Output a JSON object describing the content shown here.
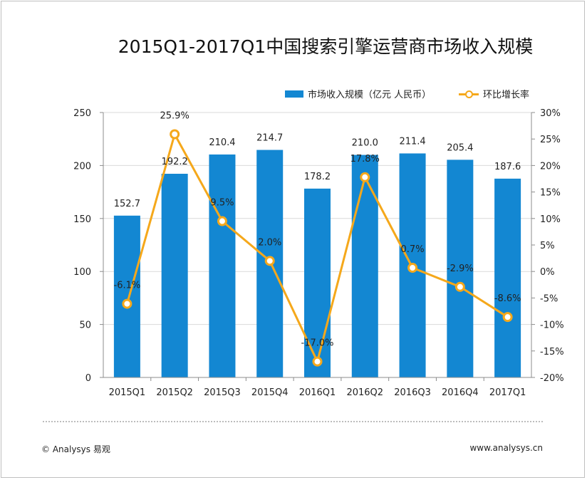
{
  "footer": {
    "left": "© Analysys 易观",
    "right": "www.analysys.cn"
  },
  "colors": {
    "bar": "#1387d2",
    "line": "#f5a81b"
  },
  "chart_data": {
    "type": "bar",
    "title": "2015Q1-2017Q1中国搜索引擎运营商市场收入规模",
    "categories": [
      "2015Q1",
      "2015Q2",
      "2015Q3",
      "2015Q4",
      "2016Q1",
      "2016Q2",
      "2016Q3",
      "2016Q4",
      "2017Q1"
    ],
    "series": [
      {
        "name": "市场收入规模（亿元 人民币）",
        "type": "bar",
        "axis": "left",
        "values": [
          152.7,
          192.2,
          210.4,
          214.7,
          178.2,
          210.0,
          211.4,
          205.4,
          187.6
        ],
        "labels": [
          "152.7",
          "192.2",
          "210.4",
          "214.7",
          "178.2",
          "210.0",
          "211.4",
          "205.4",
          "187.6"
        ]
      },
      {
        "name": "环比增长率",
        "type": "line",
        "axis": "right",
        "values": [
          -6.1,
          25.9,
          9.5,
          2.0,
          -17.0,
          17.8,
          0.7,
          -2.9,
          -8.6
        ],
        "labels": [
          "-6.1%",
          "25.9%",
          "9.5%",
          "2.0%",
          "-17.0%",
          "17.8%",
          "0.7%",
          "-2.9%",
          "-8.6%"
        ]
      }
    ],
    "left_axis": {
      "min": 0,
      "max": 250,
      "ticks": [
        "0",
        "50",
        "100",
        "150",
        "200",
        "250"
      ]
    },
    "right_axis": {
      "min": -20,
      "max": 30,
      "ticks": [
        "-20%",
        "-15%",
        "-10%",
        "-5%",
        "0%",
        "5%",
        "10%",
        "15%",
        "20%",
        "25%",
        "30%"
      ]
    },
    "grid": true,
    "legend_position": "top-right"
  }
}
